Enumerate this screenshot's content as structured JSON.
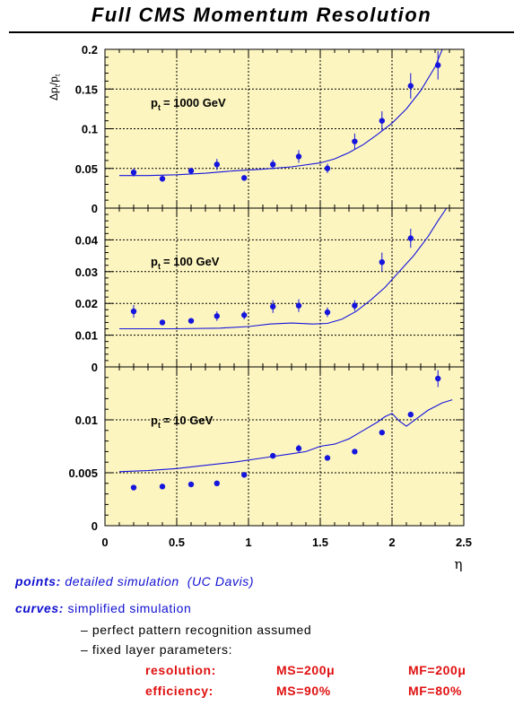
{
  "page": {
    "title": "Full CMS Momentum Resolution"
  },
  "chart_data": {
    "type": "scatter",
    "xlabel": "η",
    "xlim": [
      0,
      2.5
    ],
    "x_ticks": [
      "0",
      "0.5",
      "1",
      "1.5",
      "2",
      "2.5"
    ],
    "ylabel": "Δp_t/p_t",
    "ylabel_parts": [
      "Δp",
      "t",
      "/p",
      "t"
    ],
    "grid": true,
    "colors": {
      "plot_bg": "#fdf5c0",
      "marker": "#1515dd",
      "curve": "#1515dd"
    },
    "panels": [
      {
        "label_prefix": "p",
        "label_sub": "t",
        "label_value": "= 1000 GeV",
        "ylim": [
          0,
          0.2
        ],
        "y_ticks": [
          {
            "v": 0,
            "t": "0"
          },
          {
            "v": 0.05,
            "t": "0.05"
          },
          {
            "v": 0.1,
            "t": "0.1"
          },
          {
            "v": 0.15,
            "t": "0.15"
          },
          {
            "v": 0.2,
            "t": "0.2"
          }
        ],
        "points": [
          {
            "x": 0.2,
            "y": 0.045,
            "err": 0.005
          },
          {
            "x": 0.4,
            "y": 0.037,
            "err": 0.003
          },
          {
            "x": 0.6,
            "y": 0.047,
            "err": 0.004
          },
          {
            "x": 0.78,
            "y": 0.055,
            "err": 0.007
          },
          {
            "x": 0.97,
            "y": 0.038,
            "err": 0.003
          },
          {
            "x": 1.17,
            "y": 0.055,
            "err": 0.006
          },
          {
            "x": 1.35,
            "y": 0.065,
            "err": 0.008
          },
          {
            "x": 1.55,
            "y": 0.05,
            "err": 0.006
          },
          {
            "x": 1.74,
            "y": 0.084,
            "err": 0.01
          },
          {
            "x": 1.93,
            "y": 0.11,
            "err": 0.012
          },
          {
            "x": 2.13,
            "y": 0.154,
            "err": 0.016
          },
          {
            "x": 2.32,
            "y": 0.18,
            "err": 0.018
          }
        ],
        "curve": [
          [
            0.1,
            0.041
          ],
          [
            0.3,
            0.041
          ],
          [
            0.5,
            0.042
          ],
          [
            0.7,
            0.044
          ],
          [
            0.9,
            0.047
          ],
          [
            1.1,
            0.049
          ],
          [
            1.3,
            0.052
          ],
          [
            1.5,
            0.057
          ],
          [
            1.6,
            0.062
          ],
          [
            1.7,
            0.07
          ],
          [
            1.8,
            0.08
          ],
          [
            1.9,
            0.093
          ],
          [
            2.0,
            0.107
          ],
          [
            2.1,
            0.125
          ],
          [
            2.2,
            0.148
          ],
          [
            2.3,
            0.178
          ],
          [
            2.35,
            0.2
          ]
        ]
      },
      {
        "label_prefix": "p",
        "label_sub": "t",
        "label_value": "= 100 GeV",
        "ylim": [
          0,
          0.05
        ],
        "y_ticks": [
          {
            "v": 0,
            "t": "0"
          },
          {
            "v": 0.01,
            "t": "0.01"
          },
          {
            "v": 0.02,
            "t": "0.02"
          },
          {
            "v": 0.03,
            "t": "0.03"
          },
          {
            "v": 0.04,
            "t": "0.04"
          }
        ],
        "points": [
          {
            "x": 0.2,
            "y": 0.0175,
            "err": 0.002
          },
          {
            "x": 0.4,
            "y": 0.014,
            "err": 0.0007
          },
          {
            "x": 0.6,
            "y": 0.0145,
            "err": 0.0008
          },
          {
            "x": 0.78,
            "y": 0.016,
            "err": 0.0015
          },
          {
            "x": 0.97,
            "y": 0.0163,
            "err": 0.0013
          },
          {
            "x": 1.17,
            "y": 0.019,
            "err": 0.002
          },
          {
            "x": 1.35,
            "y": 0.0193,
            "err": 0.002
          },
          {
            "x": 1.55,
            "y": 0.0172,
            "err": 0.0015
          },
          {
            "x": 1.74,
            "y": 0.0193,
            "err": 0.0017
          },
          {
            "x": 1.93,
            "y": 0.033,
            "err": 0.003
          },
          {
            "x": 2.13,
            "y": 0.0405,
            "err": 0.003
          }
        ],
        "curve": [
          [
            0.1,
            0.012
          ],
          [
            0.5,
            0.012
          ],
          [
            0.8,
            0.0122
          ],
          [
            1.0,
            0.0127
          ],
          [
            1.15,
            0.0135
          ],
          [
            1.3,
            0.0138
          ],
          [
            1.45,
            0.0135
          ],
          [
            1.55,
            0.0137
          ],
          [
            1.65,
            0.015
          ],
          [
            1.75,
            0.0175
          ],
          [
            1.85,
            0.021
          ],
          [
            1.95,
            0.025
          ],
          [
            2.05,
            0.03
          ],
          [
            2.15,
            0.035
          ],
          [
            2.25,
            0.041
          ],
          [
            2.32,
            0.046
          ],
          [
            2.38,
            0.05
          ]
        ]
      },
      {
        "label_prefix": "p",
        "label_sub": "t",
        "label_value": "= 10 GeV",
        "ylim": [
          0,
          0.015
        ],
        "y_ticks": [
          {
            "v": 0,
            "t": "0"
          },
          {
            "v": 0.005,
            "t": "0.005"
          },
          {
            "v": 0.01,
            "t": "0.01"
          }
        ],
        "points": [
          {
            "x": 0.2,
            "y": 0.0036,
            "err": 8e-05
          },
          {
            "x": 0.4,
            "y": 0.0037,
            "err": 8e-05
          },
          {
            "x": 0.6,
            "y": 0.0039,
            "err": 8e-05
          },
          {
            "x": 0.78,
            "y": 0.004,
            "err": 0.0001
          },
          {
            "x": 0.97,
            "y": 0.0048,
            "err": 0.00015
          },
          {
            "x": 1.17,
            "y": 0.0066,
            "err": 0.00015
          },
          {
            "x": 1.35,
            "y": 0.0073,
            "err": 0.00035
          },
          {
            "x": 1.55,
            "y": 0.0064,
            "err": 0.0002
          },
          {
            "x": 1.74,
            "y": 0.007,
            "err": 0.0002
          },
          {
            "x": 1.93,
            "y": 0.0088,
            "err": 0.0002
          },
          {
            "x": 2.13,
            "y": 0.0105,
            "err": 0.0002
          },
          {
            "x": 2.32,
            "y": 0.0139,
            "err": 0.0008
          }
        ],
        "curve": [
          [
            0.1,
            0.0051
          ],
          [
            0.3,
            0.0052
          ],
          [
            0.5,
            0.0054
          ],
          [
            0.7,
            0.0057
          ],
          [
            0.9,
            0.006
          ],
          [
            1.1,
            0.0064
          ],
          [
            1.3,
            0.0068
          ],
          [
            1.4,
            0.007
          ],
          [
            1.5,
            0.0075
          ],
          [
            1.6,
            0.0077
          ],
          [
            1.7,
            0.0082
          ],
          [
            1.8,
            0.009
          ],
          [
            1.9,
            0.0098
          ],
          [
            1.95,
            0.0103
          ],
          [
            2.0,
            0.0106
          ],
          [
            2.05,
            0.0099
          ],
          [
            2.1,
            0.0094
          ],
          [
            2.15,
            0.0099
          ],
          [
            2.25,
            0.0109
          ],
          [
            2.35,
            0.0116
          ],
          [
            2.42,
            0.0119
          ]
        ]
      }
    ]
  },
  "notes": {
    "points_label": "points:",
    "points_text": "detailed simulation",
    "points_source": "(UC Davis)",
    "curves_label": "curves:",
    "curves_text": "simplified simulation",
    "bullet1": "– perfect pattern recognition assumed",
    "bullet2": "– fixed layer parameters:",
    "res_label": "resolution:",
    "res_ms": "MS=200μ",
    "res_mf": "MF=200μ",
    "eff_label": "efficiency:",
    "eff_ms": "MS=90%",
    "eff_mf": "MF=80%"
  }
}
